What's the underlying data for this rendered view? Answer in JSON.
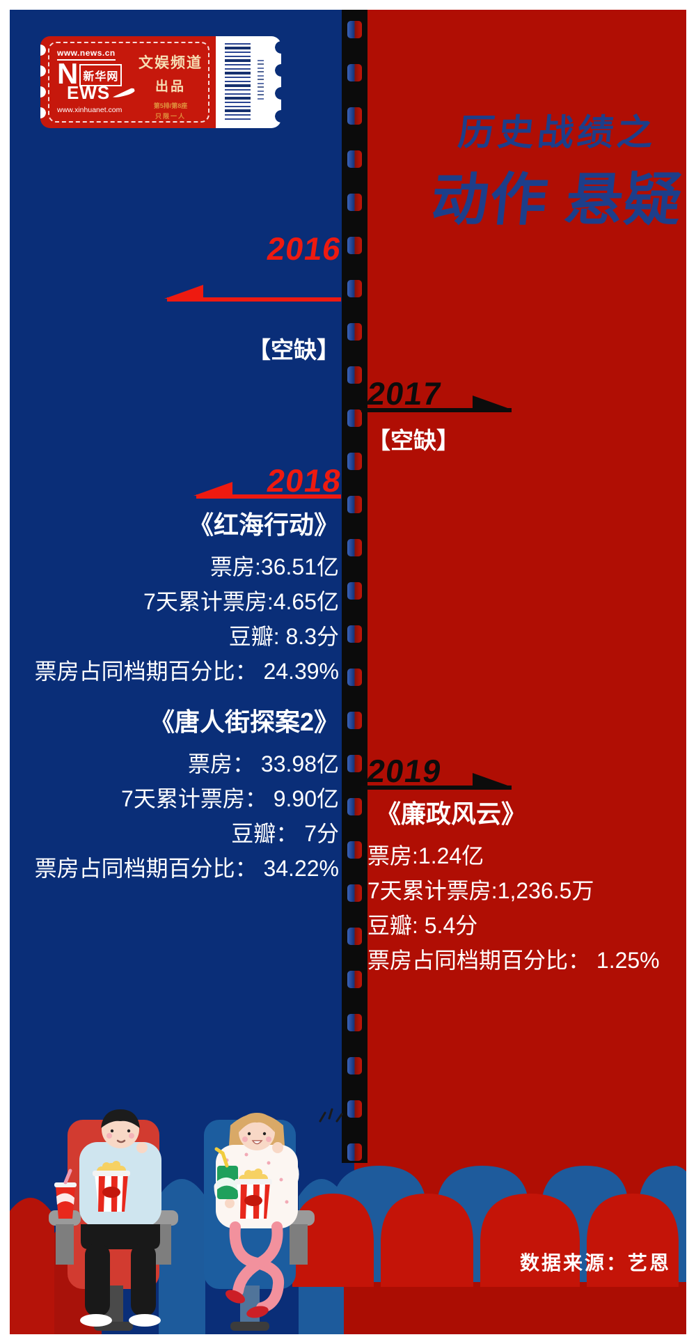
{
  "logo": {
    "url_top": "www.news.cn",
    "news_n": "N",
    "news_ews": "EWS",
    "brand": "新华网",
    "url_bottom": "www.xinhuanet.com",
    "channel": "文娱频道",
    "produced": "出品",
    "seat_info": "第5排/第8座",
    "ticket_note": "只限一人"
  },
  "title": {
    "line1": "历史战绩之",
    "line2": "动作 悬疑"
  },
  "timeline": {
    "y2016": {
      "year": "2016",
      "status": "【空缺】"
    },
    "y2017": {
      "year": "2017",
      "status": "【空缺】"
    },
    "y2018": {
      "year": "2018",
      "movies": [
        {
          "title": "《红海行动》",
          "box": "票房:36.51亿",
          "week": "7天累计票房:4.65亿",
          "douban": "豆瓣: 8.3分",
          "share": "票房占同档期百分比： 24.39%"
        },
        {
          "title": "《唐人街探案2》",
          "box": "票房： 33.98亿",
          "week": "7天累计票房： 9.90亿",
          "douban": "豆瓣： 7分",
          "share": "票房占同档期百分比： 34.22%"
        }
      ]
    },
    "y2019": {
      "year": "2019",
      "movies": [
        {
          "title": "《廉政风云》",
          "box": "票房:1.24亿",
          "week": "7天累计票房:1,236.5万",
          "douban": "豆瓣: 5.4分",
          "share": "票房占同档期百分比： 1.25%"
        }
      ]
    }
  },
  "footer": {
    "source": "数据来源：艺恩"
  },
  "colors": {
    "blue_panel": "#0a2e78",
    "red_panel": "#b00e04",
    "title_navy": "#1d3e8a",
    "year_red": "#ee1a10",
    "year_black": "#0c0c0c",
    "ticket_red": "#c6180c",
    "ticket_cream": "#f6ddb3",
    "ticket_orange": "#e0913d",
    "text_white": "#ffffff"
  },
  "chart_data": {
    "type": "table",
    "title": "历史战绩之 动作 悬疑",
    "categories": [
      "2016",
      "2017",
      "2018",
      "2019"
    ],
    "rows": [
      {
        "year": 2016,
        "movies": [],
        "note": "空缺"
      },
      {
        "year": 2017,
        "movies": [],
        "note": "空缺"
      },
      {
        "year": 2018,
        "movies": [
          {
            "name": "红海行动",
            "box_office_yi": 36.51,
            "first7days_yi": 4.65,
            "douban_score": 8.3,
            "share_pct": 24.39
          },
          {
            "name": "唐人街探案2",
            "box_office_yi": 33.98,
            "first7days_yi": 9.9,
            "douban_score": 7,
            "share_pct": 34.22
          }
        ]
      },
      {
        "year": 2019,
        "movies": [
          {
            "name": "廉政风云",
            "box_office_yi": 1.24,
            "first7days_wan": 1236.5,
            "douban_score": 5.4,
            "share_pct": 1.25
          }
        ]
      }
    ],
    "source": "艺恩"
  }
}
